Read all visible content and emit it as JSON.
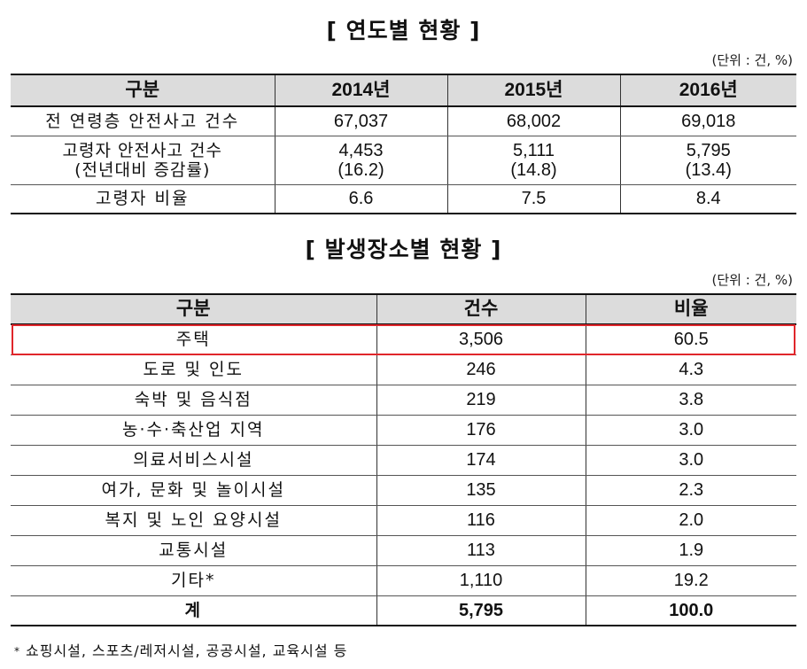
{
  "yearly": {
    "title": "[ 연도별 현황 ]",
    "unit_note": "(단위 : 건, %)",
    "headers": [
      "구분",
      "2014년",
      "2015년",
      "2016년"
    ],
    "rows": {
      "all_ages": {
        "label": "전 연령층 안전사고 건수",
        "values": [
          "67,037",
          "68,002",
          "69,018"
        ]
      },
      "elderly": {
        "label": "고령자 안전사고 건수",
        "sub_label": "(전년대비 증감률)",
        "values": [
          "4,453",
          "5,111",
          "5,795"
        ],
        "changes": [
          "(16.2)",
          "(14.8)",
          "(13.4)"
        ]
      },
      "ratio": {
        "label": "고령자 비율",
        "values": [
          "6.6",
          "7.5",
          "8.4"
        ]
      }
    }
  },
  "location": {
    "title": "[ 발생장소별 현황 ]",
    "unit_note": "(단위 : 건, %)",
    "headers": [
      "구분",
      "건수",
      "비율"
    ],
    "rows": [
      {
        "label": "주택",
        "count": "3,506",
        "ratio": "60.5"
      },
      {
        "label": "도로 및 인도",
        "count": "246",
        "ratio": "4.3"
      },
      {
        "label": "숙박 및 음식점",
        "count": "219",
        "ratio": "3.8"
      },
      {
        "label": "농·수·축산업 지역",
        "count": "176",
        "ratio": "3.0"
      },
      {
        "label": "의료서비스시설",
        "count": "174",
        "ratio": "3.0"
      },
      {
        "label": "여가, 문화 및 놀이시설",
        "count": "135",
        "ratio": "2.3"
      },
      {
        "label": "복지 및 노인 요양시설",
        "count": "116",
        "ratio": "2.0"
      },
      {
        "label": "교통시설",
        "count": "113",
        "ratio": "1.9"
      },
      {
        "label": "기타*",
        "count": "1,110",
        "ratio": "19.2"
      }
    ],
    "total": {
      "label": "계",
      "count": "5,795",
      "ratio": "100.0"
    }
  },
  "highlight_color": "#e0262b",
  "footnote": {
    "marker": "*",
    "text": "쇼핑시설, 스포츠/레저시설, 공공시설, 교육시설 등"
  }
}
